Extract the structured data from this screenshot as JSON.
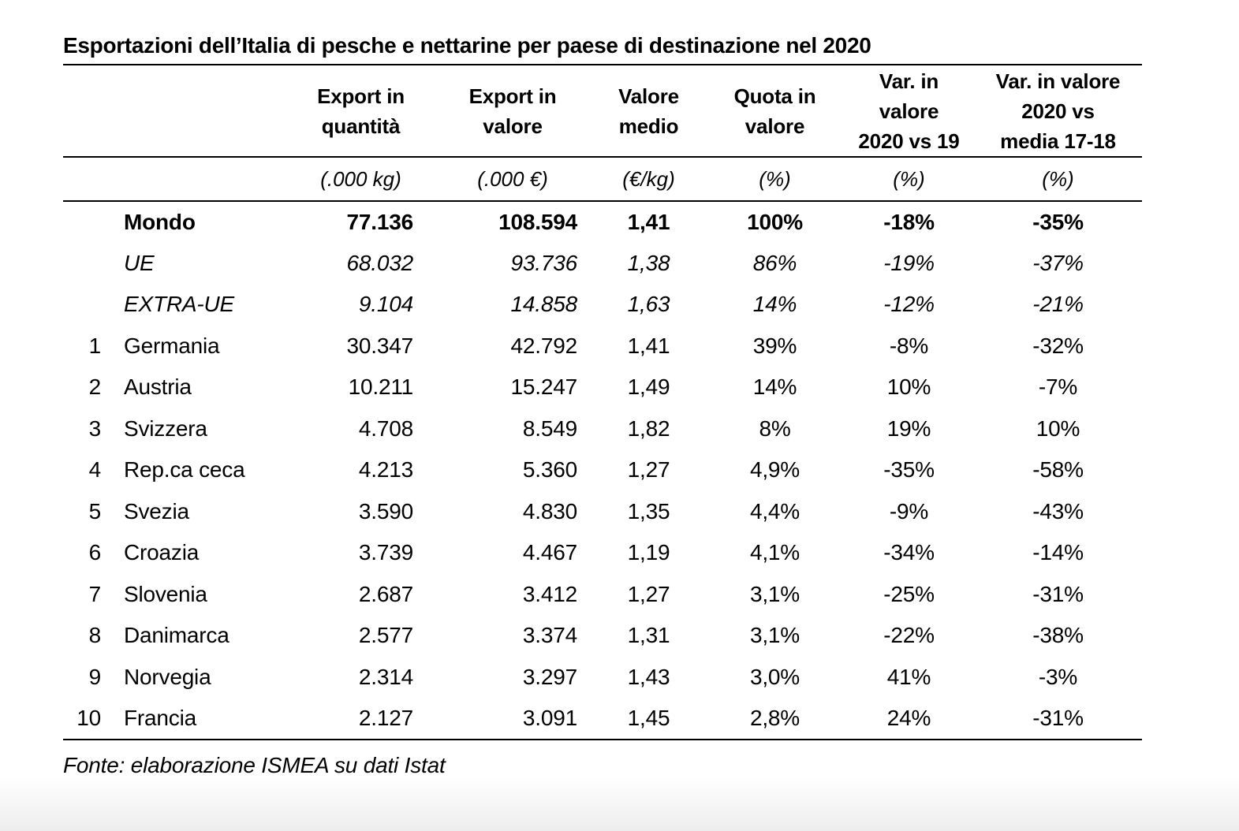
{
  "page": {
    "title": "Esportazioni dell’Italia di pesche e nettarine per paese di destinazione nel 2020",
    "source_note": "Fonte: elaborazione ISMEA su dati Istat"
  },
  "table": {
    "headers": [
      "Export in\nquantità",
      "Export in\nvalore",
      "Valore\nmedio",
      "Quota in\nvalore",
      "Var. in\nvalore\n2020 vs 19",
      "Var. in valore\n2020 vs\nmedia 17-18"
    ],
    "units": [
      "(.000 kg)",
      "(.000 €)",
      "(€/kg)",
      "(%)",
      "(%)",
      "(%)"
    ],
    "rows": [
      {
        "rank": "",
        "country": "Mondo",
        "qty": "77.136",
        "value": "108.594",
        "avg": "1,41",
        "share": "100%",
        "var19": "-18%",
        "var1718": "-35%",
        "style": "bold"
      },
      {
        "rank": "",
        "country": "UE",
        "qty": "68.032",
        "value": "93.736",
        "avg": "1,38",
        "share": "86%",
        "var19": "-19%",
        "var1718": "-37%",
        "style": "italic"
      },
      {
        "rank": "",
        "country": "EXTRA-UE",
        "qty": "9.104",
        "value": "14.858",
        "avg": "1,63",
        "share": "14%",
        "var19": "-12%",
        "var1718": "-21%",
        "style": "italic"
      },
      {
        "rank": "1",
        "country": "Germania",
        "qty": "30.347",
        "value": "42.792",
        "avg": "1,41",
        "share": "39%",
        "var19": "-8%",
        "var1718": "-32%",
        "style": "normal"
      },
      {
        "rank": "2",
        "country": "Austria",
        "qty": "10.211",
        "value": "15.247",
        "avg": "1,49",
        "share": "14%",
        "var19": "10%",
        "var1718": "-7%",
        "style": "normal"
      },
      {
        "rank": "3",
        "country": "Svizzera",
        "qty": "4.708",
        "value": "8.549",
        "avg": "1,82",
        "share": "8%",
        "var19": "19%",
        "var1718": "10%",
        "style": "normal"
      },
      {
        "rank": "4",
        "country": "Rep.ca ceca",
        "qty": "4.213",
        "value": "5.360",
        "avg": "1,27",
        "share": "4,9%",
        "var19": "-35%",
        "var1718": "-58%",
        "style": "normal"
      },
      {
        "rank": "5",
        "country": "Svezia",
        "qty": "3.590",
        "value": "4.830",
        "avg": "1,35",
        "share": "4,4%",
        "var19": "-9%",
        "var1718": "-43%",
        "style": "normal"
      },
      {
        "rank": "6",
        "country": "Croazia",
        "qty": "3.739",
        "value": "4.467",
        "avg": "1,19",
        "share": "4,1%",
        "var19": "-34%",
        "var1718": "-14%",
        "style": "normal"
      },
      {
        "rank": "7",
        "country": "Slovenia",
        "qty": "2.687",
        "value": "3.412",
        "avg": "1,27",
        "share": "3,1%",
        "var19": "-25%",
        "var1718": "-31%",
        "style": "normal"
      },
      {
        "rank": "8",
        "country": "Danimarca",
        "qty": "2.577",
        "value": "3.374",
        "avg": "1,31",
        "share": "3,1%",
        "var19": "-22%",
        "var1718": "-38%",
        "style": "normal"
      },
      {
        "rank": "9",
        "country": "Norvegia",
        "qty": "2.314",
        "value": "3.297",
        "avg": "1,43",
        "share": "3,0%",
        "var19": "41%",
        "var1718": "-3%",
        "style": "normal"
      },
      {
        "rank": "10",
        "country": "Francia",
        "qty": "2.127",
        "value": "3.091",
        "avg": "1,45",
        "share": "2,8%",
        "var19": "24%",
        "var1718": "-31%",
        "style": "normal"
      }
    ]
  }
}
